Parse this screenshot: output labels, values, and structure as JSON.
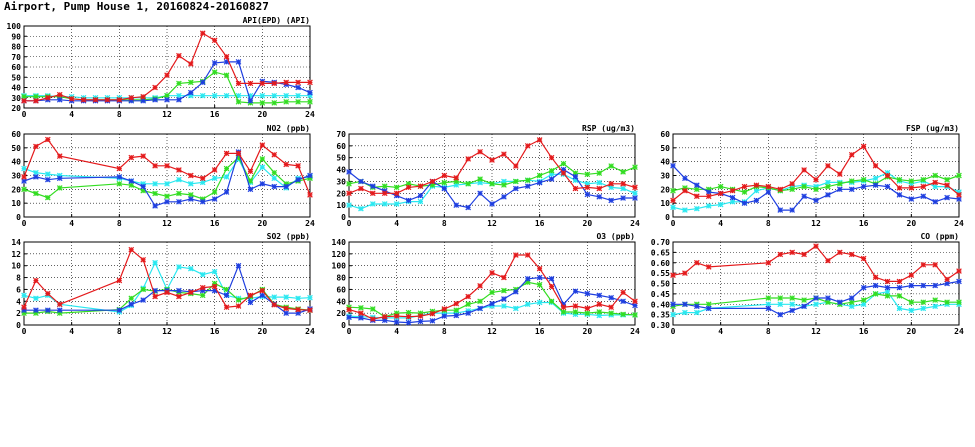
{
  "title": "Airport, Pump House 1, 20160824-20160827",
  "colors": {
    "red": "#e41a1c",
    "green": "#33dd22",
    "blue": "#1f3fe0",
    "cyan": "#2ae8f0",
    "grid": "#000000"
  },
  "chart_data": [
    {
      "id": "api",
      "type": "line",
      "title": "API(EPD) (API)",
      "xlim": [
        0,
        24
      ],
      "ylim": [
        20,
        100
      ],
      "xticks": [
        0,
        4,
        8,
        12,
        16,
        20,
        24
      ],
      "yticks": [
        20,
        30,
        40,
        50,
        60,
        70,
        80,
        90,
        100
      ],
      "x": [
        0,
        1,
        2,
        3,
        4,
        5,
        6,
        7,
        8,
        9,
        10,
        11,
        12,
        13,
        14,
        15,
        16,
        17,
        18,
        19,
        20,
        21,
        22,
        23,
        24
      ],
      "series": [
        {
          "color": "red",
          "values": [
            27,
            27,
            30,
            33,
            29,
            28,
            28,
            28,
            28,
            30,
            31,
            40,
            52,
            71,
            63,
            93,
            86,
            70,
            44,
            44,
            44,
            44,
            45,
            45,
            45
          ]
        },
        {
          "color": "green",
          "values": [
            31,
            31,
            31,
            31,
            29,
            28,
            28,
            28,
            28,
            28,
            28,
            29,
            32,
            44,
            45,
            46,
            55,
            52,
            26,
            25,
            25,
            25,
            26,
            26,
            26
          ]
        },
        {
          "color": "blue",
          "values": [
            27,
            27,
            28,
            28,
            27,
            27,
            27,
            27,
            27,
            27,
            27,
            28,
            28,
            28,
            35,
            45,
            64,
            65,
            65,
            27,
            46,
            45,
            43,
            40,
            35
          ]
        },
        {
          "color": "cyan",
          "values": [
            32,
            32,
            32,
            31,
            31,
            30,
            30,
            30,
            30,
            30,
            30,
            30,
            32,
            32,
            32,
            32,
            32,
            32,
            32,
            32,
            32,
            32,
            32,
            32,
            32
          ]
        }
      ]
    },
    {
      "id": "no2",
      "type": "line",
      "title": "NO2 (ppb)",
      "xlim": [
        0,
        24
      ],
      "ylim": [
        0,
        60
      ],
      "xticks": [
        0,
        4,
        8,
        12,
        16,
        20,
        24
      ],
      "yticks": [
        0,
        10,
        20,
        30,
        40,
        50,
        60
      ],
      "x": [
        0,
        1,
        2,
        3,
        8,
        9,
        10,
        11,
        12,
        13,
        14,
        15,
        16,
        17,
        18,
        19,
        20,
        21,
        22,
        23,
        24
      ],
      "series": [
        {
          "color": "red",
          "values": [
            29,
            51,
            56,
            44,
            35,
            43,
            44,
            37,
            37,
            34,
            30,
            28,
            34,
            46,
            46,
            33,
            52,
            45,
            38,
            37,
            16
          ]
        },
        {
          "color": "green",
          "values": [
            20,
            17,
            14,
            21,
            24,
            23,
            19,
            17,
            15,
            17,
            16,
            13,
            18,
            35,
            43,
            26,
            42,
            32,
            24,
            26,
            28
          ]
        },
        {
          "color": "blue",
          "values": [
            26,
            29,
            27,
            28,
            29,
            26,
            22,
            8,
            11,
            11,
            13,
            11,
            13,
            18,
            47,
            20,
            24,
            22,
            22,
            27,
            30
          ]
        },
        {
          "color": "cyan",
          "values": [
            35,
            32,
            31,
            30,
            28,
            26,
            24,
            24,
            24,
            27,
            24,
            25,
            28,
            29,
            42,
            25,
            36,
            28,
            21,
            28,
            29
          ]
        }
      ]
    },
    {
      "id": "rsp",
      "type": "line",
      "title": "RSP (ug/m3)",
      "xlim": [
        0,
        24
      ],
      "ylim": [
        0,
        70
      ],
      "xticks": [
        0,
        4,
        8,
        12,
        16,
        20,
        24
      ],
      "yticks": [
        0,
        10,
        20,
        30,
        40,
        50,
        60,
        70
      ],
      "x": [
        0,
        1,
        2,
        3,
        4,
        5,
        6,
        7,
        8,
        9,
        10,
        11,
        12,
        13,
        14,
        15,
        16,
        17,
        18,
        19,
        20,
        21,
        22,
        23,
        24
      ],
      "series": [
        {
          "color": "red",
          "values": [
            20,
            24,
            20,
            20,
            20,
            25,
            26,
            30,
            35,
            33,
            49,
            55,
            48,
            53,
            43,
            60,
            65,
            50,
            37,
            24,
            25,
            24,
            28,
            28,
            25
          ]
        },
        {
          "color": "green",
          "values": [
            28,
            30,
            25,
            26,
            25,
            28,
            26,
            27,
            29,
            30,
            28,
            32,
            28,
            27,
            30,
            31,
            35,
            39,
            45,
            37,
            36,
            37,
            43,
            38,
            42
          ]
        },
        {
          "color": "blue",
          "values": [
            38,
            30,
            26,
            22,
            18,
            14,
            18,
            30,
            24,
            10,
            8,
            20,
            11,
            17,
            24,
            26,
            29,
            32,
            40,
            34,
            19,
            17,
            14,
            16,
            16
          ]
        },
        {
          "color": "cyan",
          "values": [
            10,
            7,
            11,
            11,
            11,
            13,
            13,
            26,
            25,
            27,
            28,
            29,
            28,
            30,
            30,
            31,
            30,
            36,
            36,
            31,
            28,
            29,
            25,
            24,
            20
          ]
        }
      ]
    },
    {
      "id": "fsp",
      "type": "line",
      "title": "FSP (ug/m3)",
      "xlim": [
        0,
        24
      ],
      "ylim": [
        0,
        60
      ],
      "xticks": [
        0,
        4,
        8,
        12,
        16,
        20,
        24
      ],
      "yticks": [
        0,
        10,
        20,
        30,
        40,
        50,
        60
      ],
      "x": [
        0,
        1,
        2,
        3,
        4,
        5,
        6,
        7,
        8,
        9,
        10,
        11,
        12,
        13,
        14,
        15,
        16,
        17,
        18,
        19,
        20,
        21,
        22,
        23,
        24
      ],
      "series": [
        {
          "color": "red",
          "values": [
            12,
            19,
            15,
            15,
            17,
            19,
            22,
            23,
            22,
            20,
            24,
            34,
            27,
            37,
            31,
            45,
            51,
            37,
            30,
            21,
            21,
            22,
            25,
            23,
            16
          ]
        },
        {
          "color": "green",
          "values": [
            19,
            21,
            20,
            20,
            22,
            20,
            18,
            22,
            21,
            19,
            20,
            22,
            20,
            22,
            24,
            26,
            27,
            24,
            29,
            27,
            26,
            27,
            30,
            27,
            30
          ]
        },
        {
          "color": "blue",
          "values": [
            37,
            28,
            23,
            18,
            17,
            14,
            10,
            12,
            18,
            5,
            5,
            15,
            12,
            16,
            20,
            20,
            22,
            23,
            22,
            16,
            13,
            15,
            11,
            14,
            13
          ]
        },
        {
          "color": "cyan",
          "values": [
            7,
            5,
            6,
            8,
            9,
            11,
            11,
            19,
            21,
            19,
            22,
            23,
            22,
            25,
            25,
            25,
            26,
            28,
            32,
            26,
            24,
            26,
            22,
            22,
            18
          ]
        }
      ]
    },
    {
      "id": "so2",
      "type": "line",
      "title": "SO2 (ppb)",
      "xlim": [
        0,
        24
      ],
      "ylim": [
        0,
        14
      ],
      "xticks": [
        0,
        4,
        8,
        12,
        16,
        20,
        24
      ],
      "yticks": [
        0,
        2,
        4,
        6,
        8,
        10,
        12,
        14
      ],
      "x": [
        0,
        1,
        2,
        3,
        8,
        9,
        10,
        11,
        12,
        13,
        14,
        15,
        16,
        17,
        18,
        19,
        20,
        21,
        22,
        23,
        24
      ],
      "series": [
        {
          "color": "red",
          "values": [
            3.0,
            7.5,
            5.3,
            3.5,
            7.5,
            12.7,
            11.0,
            4.8,
            5.5,
            4.8,
            5.5,
            6.3,
            6.5,
            3.0,
            3.2,
            5.0,
            5.8,
            3.4,
            2.8,
            2.6,
            2.5
          ]
        },
        {
          "color": "green",
          "values": [
            2.0,
            2.0,
            2.3,
            2.0,
            2.6,
            4.5,
            6.0,
            5.7,
            6.0,
            5.5,
            5.3,
            5.0,
            7.0,
            6.0,
            4.2,
            4.8,
            6.0,
            3.5,
            3.0,
            2.7,
            2.5
          ]
        },
        {
          "color": "blue",
          "values": [
            2.5,
            2.5,
            2.5,
            2.5,
            2.5,
            3.5,
            4.2,
            5.8,
            5.8,
            5.8,
            5.6,
            5.8,
            5.8,
            5.0,
            10.0,
            3.8,
            5.0,
            3.5,
            2.0,
            2.0,
            2.7
          ]
        },
        {
          "color": "cyan",
          "values": [
            5.0,
            4.5,
            5.0,
            3.5,
            2.2,
            3.3,
            6.2,
            10.5,
            6.0,
            9.8,
            9.5,
            8.5,
            9.0,
            5.0,
            4.5,
            4.5,
            4.8,
            4.7,
            4.7,
            4.5,
            4.6
          ]
        }
      ]
    },
    {
      "id": "o3",
      "type": "line",
      "title": "O3 (ppb)",
      "xlim": [
        0,
        24
      ],
      "ylim": [
        0,
        140
      ],
      "xticks": [
        0,
        4,
        8,
        12,
        16,
        20,
        24
      ],
      "yticks": [
        0,
        20,
        40,
        60,
        80,
        100,
        120,
        140
      ],
      "x": [
        0,
        1,
        2,
        3,
        4,
        5,
        6,
        7,
        8,
        9,
        10,
        11,
        12,
        13,
        14,
        15,
        16,
        17,
        18,
        19,
        20,
        21,
        22,
        23,
        24
      ],
      "series": [
        {
          "color": "red",
          "values": [
            26,
            20,
            10,
            14,
            15,
            14,
            15,
            19,
            27,
            36,
            48,
            66,
            88,
            80,
            118,
            118,
            95,
            65,
            30,
            32,
            28,
            35,
            30,
            55,
            40
          ]
        },
        {
          "color": "green",
          "values": [
            30,
            29,
            27,
            14,
            20,
            21,
            20,
            23,
            25,
            25,
            35,
            40,
            55,
            58,
            60,
            72,
            68,
            40,
            22,
            22,
            20,
            22,
            20,
            18,
            17
          ]
        },
        {
          "color": "blue",
          "values": [
            13,
            12,
            8,
            8,
            5,
            4,
            6,
            7,
            15,
            16,
            20,
            28,
            36,
            44,
            56,
            78,
            80,
            78,
            35,
            57,
            53,
            50,
            46,
            40,
            33
          ]
        },
        {
          "color": "cyan",
          "values": [
            15,
            14,
            13,
            12,
            12,
            12,
            16,
            20,
            20,
            20,
            24,
            28,
            32,
            32,
            28,
            35,
            38,
            38,
            20,
            18,
            18,
            16,
            17,
            17,
            17
          ]
        }
      ]
    },
    {
      "id": "co",
      "type": "line",
      "title": "CO (ppm)",
      "xlim": [
        0,
        24
      ],
      "ylim": [
        0.3,
        0.7
      ],
      "xticks": [
        0,
        4,
        8,
        12,
        16,
        20,
        24
      ],
      "yticks": [
        0.3,
        0.35,
        0.4,
        0.45,
        0.5,
        0.55,
        0.6,
        0.65,
        0.7
      ],
      "x": [
        0,
        1,
        2,
        3,
        8,
        9,
        10,
        11,
        12,
        13,
        14,
        15,
        16,
        17,
        18,
        19,
        20,
        21,
        22,
        23,
        24
      ],
      "series": [
        {
          "color": "red",
          "values": [
            0.54,
            0.55,
            0.6,
            0.58,
            0.6,
            0.64,
            0.65,
            0.64,
            0.68,
            0.61,
            0.65,
            0.64,
            0.62,
            0.53,
            0.51,
            0.51,
            0.54,
            0.59,
            0.59,
            0.52,
            0.56
          ]
        },
        {
          "color": "green",
          "values": [
            0.39,
            0.4,
            0.4,
            0.4,
            0.43,
            0.43,
            0.43,
            0.42,
            0.43,
            0.41,
            0.4,
            0.41,
            0.42,
            0.45,
            0.44,
            0.44,
            0.41,
            0.41,
            0.42,
            0.41,
            0.41
          ]
        },
        {
          "color": "blue",
          "values": [
            0.4,
            0.4,
            0.39,
            0.38,
            0.38,
            0.35,
            0.37,
            0.39,
            0.43,
            0.43,
            0.41,
            0.43,
            0.48,
            0.49,
            0.48,
            0.48,
            0.49,
            0.49,
            0.49,
            0.5,
            0.51
          ]
        },
        {
          "color": "cyan",
          "values": [
            0.35,
            0.36,
            0.36,
            0.38,
            0.4,
            0.4,
            0.4,
            0.39,
            0.4,
            0.41,
            0.4,
            0.39,
            0.4,
            0.45,
            0.46,
            0.38,
            0.37,
            0.38,
            0.39,
            0.4,
            0.4
          ]
        }
      ]
    }
  ]
}
